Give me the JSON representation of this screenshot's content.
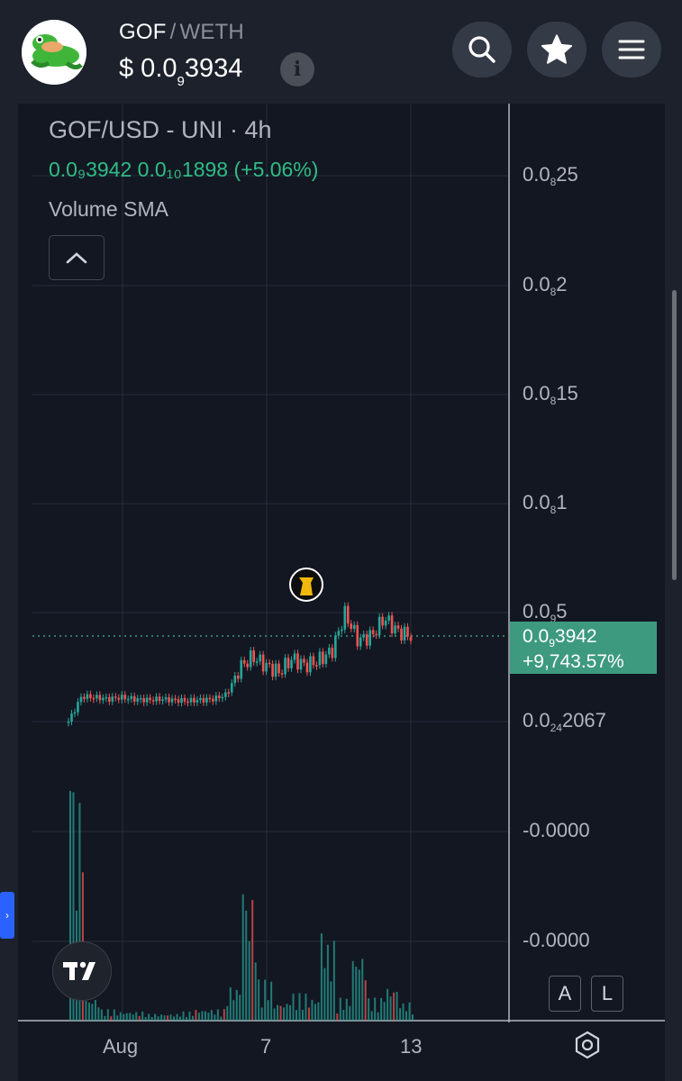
{
  "header": {
    "base_symbol": "GOF",
    "separator": "/",
    "quote_symbol": "WETH",
    "price_prefix": "$ 0.0",
    "price_subscript": "9",
    "price_rest": "3934",
    "info_label": "i",
    "buttons": [
      "search-icon",
      "star-icon",
      "menu-icon"
    ]
  },
  "chart": {
    "title": "GOF/USD - UNI · 4h",
    "legend_values": "0.0₉3942  0.0₁₀1898 (+5.06%)",
    "volume_indicator": "Volume SMA",
    "price_axis": [
      {
        "pre": "0.0",
        "sub": "8",
        "post": "25"
      },
      {
        "pre": "0.0",
        "sub": "8",
        "post": "2"
      },
      {
        "pre": "0.0",
        "sub": "8",
        "post": "15"
      },
      {
        "pre": "0.0",
        "sub": "8",
        "post": "1"
      },
      {
        "pre": "0.0",
        "sub": "9",
        "post": "5"
      },
      {
        "pre": "0.0",
        "sub": "24",
        "post": "2067"
      },
      {
        "pre": "-0.0000",
        "sub": "",
        "post": ""
      },
      {
        "pre": "-0.0000",
        "sub": "",
        "post": ""
      }
    ],
    "price_tag": {
      "pre": "0.0",
      "sub": "9",
      "post": "3942",
      "change": "+9,743.57%"
    },
    "time_axis": [
      "Aug",
      "7",
      "13"
    ],
    "mode_buttons": [
      "A",
      "L"
    ],
    "colors": {
      "up": "#26a69a",
      "down": "#ef5350",
      "background": "#131722",
      "tag": "#3d9a7e"
    }
  },
  "chart_data": {
    "type": "candlestick",
    "title": "GOF/USD - UNI · 4h",
    "interval": "4h",
    "x_ticks": [
      "Aug",
      "7",
      "13"
    ],
    "y_ticks": [
      "0.0₈25",
      "0.0₈2",
      "0.0₈15",
      "0.0₈1",
      "0.0₉5",
      "0.0₂₄2067",
      "-0.0000",
      "-0.0000"
    ],
    "last_price": "0.0₉3942",
    "change_pct": "+9,743.57%",
    "series": [
      {
        "name": "Price",
        "close_trend": [
          0.0,
          0.28,
          0.27,
          0.25,
          0.27,
          0.25,
          0.24,
          0.25,
          0.24,
          0.23,
          0.24,
          0.25,
          0.3,
          0.6,
          0.72,
          0.62,
          0.55,
          0.7,
          0.62,
          0.68,
          0.78,
          1.2,
          0.9,
          0.95,
          1.15,
          1.0,
          0.95
        ]
      },
      {
        "name": "Volume",
        "values_relative": [
          1.0,
          0.1,
          0.05,
          0.04,
          0.04,
          0.03,
          0.03,
          0.04,
          0.05,
          0.05,
          0.15,
          0.55,
          0.18,
          0.08,
          0.12,
          0.1,
          0.35,
          0.1,
          0.3,
          0.1,
          0.15,
          0.08
        ]
      }
    ]
  }
}
